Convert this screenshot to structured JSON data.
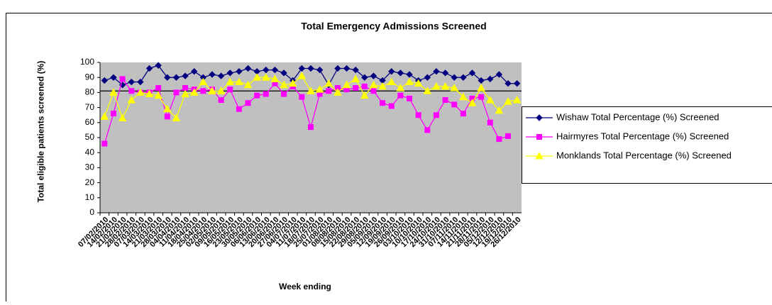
{
  "chart_data": {
    "type": "line",
    "title": "Total Emergency Admissions Screened",
    "y_label": "Total eligible patients screened (%)",
    "x_label": "Week ending",
    "categories": [
      "07/02/2010",
      "14/02/2010",
      "21/02/2010",
      "28/02/2010",
      "07/03/2010",
      "14/03/2010",
      "21/03/2010",
      "28/03/2010",
      "04/04/2010",
      "11/04/2010",
      "18/04/2010",
      "25/04/2010",
      "02/05/2010",
      "09/05/2010",
      "16/05/2010",
      "23/05/2010",
      "30/05/2010",
      "06/06/2010",
      "13/06/2010",
      "20/06/2010",
      "27/06/2010",
      "04/07/2010",
      "11/07/2010",
      "18/07/2010",
      "25/07/2010",
      "01/08/2010",
      "08/08/2010",
      "15/08/2010",
      "22/08/2010",
      "29/08/2010",
      "05/09/2010",
      "12/09/2010",
      "19/09/2010",
      "26/09/2010",
      "03/10/2010",
      "10/10/2010",
      "17/10/2010",
      "24/10/2010",
      "31/10/2010",
      "07/11/2010",
      "14/11/2010",
      "21/11/2010",
      "28/11/2010",
      "05/12/2010",
      "12/12/2010",
      "19/12/2010",
      "26/12/2010"
    ],
    "series": [
      {
        "name": "Wishaw Total Percentage (%) Screened",
        "color": "#000080",
        "marker": "diamond",
        "values": [
          88,
          90,
          85,
          87,
          87,
          96,
          98,
          90,
          90,
          91,
          94,
          90,
          92,
          91,
          93,
          94,
          96,
          94,
          95,
          95,
          93,
          88,
          96,
          96,
          95,
          85,
          96,
          96,
          95,
          90,
          91,
          88,
          94,
          93,
          92,
          88,
          90,
          94,
          93,
          90,
          90,
          93,
          88,
          89,
          92,
          86,
          86
        ]
      },
      {
        "name": "Hairmyres Total Percentage (%) Screened",
        "color": "#ff00ff",
        "marker": "square",
        "values": [
          46,
          66,
          89,
          81,
          80,
          80,
          83,
          64,
          80,
          83,
          82,
          81,
          82,
          75,
          82,
          69,
          73,
          78,
          79,
          86,
          79,
          84,
          77,
          57,
          79,
          81,
          83,
          82,
          83,
          84,
          81,
          73,
          71,
          78,
          76,
          65,
          55,
          65,
          75,
          72,
          66,
          76,
          77,
          60,
          49,
          51,
          null
        ]
      },
      {
        "name": "Monklands Total Percentage (%) Screened",
        "color": "#ffff00",
        "marker": "triangle",
        "values": [
          64,
          80,
          63,
          75,
          80,
          79,
          78,
          69,
          63,
          79,
          80,
          87,
          81,
          81,
          87,
          87,
          85,
          90,
          90,
          89,
          85,
          86,
          91,
          81,
          82,
          86,
          80,
          85,
          89,
          78,
          85,
          84,
          87,
          83,
          87,
          86,
          81,
          84,
          84,
          83,
          77,
          73,
          83,
          75,
          68,
          74,
          75
        ]
      }
    ],
    "target_line": 81,
    "ylim": [
      0,
      100
    ],
    "yticks": [
      0,
      10,
      20,
      30,
      40,
      50,
      60,
      70,
      80,
      90,
      100
    ],
    "plot_background": "#c0c0c0",
    "legend": "right"
  }
}
